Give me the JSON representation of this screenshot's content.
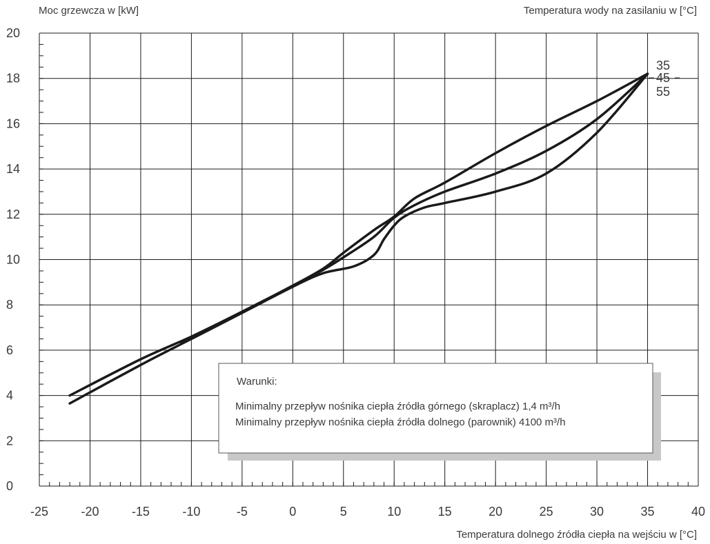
{
  "chart_data": {
    "type": "line",
    "ylabel": "Moc grzewcza w [kW]",
    "series_title": "Temperatura wody na zasilaniu w [°C]",
    "xlabel": "Temperatura dolnego źródła ciepła na wejściu w [°C]",
    "xlim": [
      -25,
      40
    ],
    "ylim": [
      0,
      20
    ],
    "x_ticks": [
      -25,
      -20,
      -15,
      -10,
      -5,
      0,
      5,
      10,
      15,
      20,
      25,
      30,
      35,
      40
    ],
    "y_ticks": [
      0,
      2,
      4,
      6,
      8,
      10,
      12,
      14,
      16,
      18,
      20
    ],
    "grid": true,
    "series": [
      {
        "name": "35",
        "points": [
          [
            -22,
            4.0
          ],
          [
            -15,
            5.6
          ],
          [
            -10,
            6.6
          ],
          [
            -5,
            7.7
          ],
          [
            0,
            8.85
          ],
          [
            3,
            9.6
          ],
          [
            5,
            10.3
          ],
          [
            8,
            11.3
          ],
          [
            10,
            11.9
          ],
          [
            12,
            12.7
          ],
          [
            15,
            13.4
          ],
          [
            20,
            14.7
          ],
          [
            25,
            15.9
          ],
          [
            30,
            17.0
          ],
          [
            35,
            18.2
          ]
        ]
      },
      {
        "name": "45",
        "points": [
          [
            -22,
            3.65
          ],
          [
            -15,
            5.35
          ],
          [
            -10,
            6.5
          ],
          [
            -5,
            7.65
          ],
          [
            0,
            8.85
          ],
          [
            3,
            9.55
          ],
          [
            5,
            10.1
          ],
          [
            8,
            11.0
          ],
          [
            10,
            11.85
          ],
          [
            12,
            12.4
          ],
          [
            15,
            13.0
          ],
          [
            20,
            13.8
          ],
          [
            25,
            14.8
          ],
          [
            30,
            16.2
          ],
          [
            35,
            18.2
          ]
        ]
      },
      {
        "name": "55",
        "points": [
          [
            -11,
            6.3
          ],
          [
            -5,
            7.65
          ],
          [
            0,
            8.8
          ],
          [
            3,
            9.4
          ],
          [
            6,
            9.7
          ],
          [
            8,
            10.2
          ],
          [
            9,
            10.9
          ],
          [
            10,
            11.5
          ],
          [
            11,
            11.9
          ],
          [
            13,
            12.3
          ],
          [
            15,
            12.5
          ],
          [
            20,
            13.0
          ],
          [
            25,
            13.8
          ],
          [
            30,
            15.6
          ],
          [
            35,
            18.2
          ]
        ]
      }
    ],
    "series_labels": [
      "35",
      "45",
      "55"
    ],
    "legend_box": {
      "title": "Warunki:",
      "lines": [
        "Minimalny przepływ nośnika ciepła źródła górnego (skraplacz) 1,4 m³/h",
        "Minimalny przepływ nośnika ciepła źródła dolnego (parownik) 4100 m³/h"
      ]
    }
  }
}
